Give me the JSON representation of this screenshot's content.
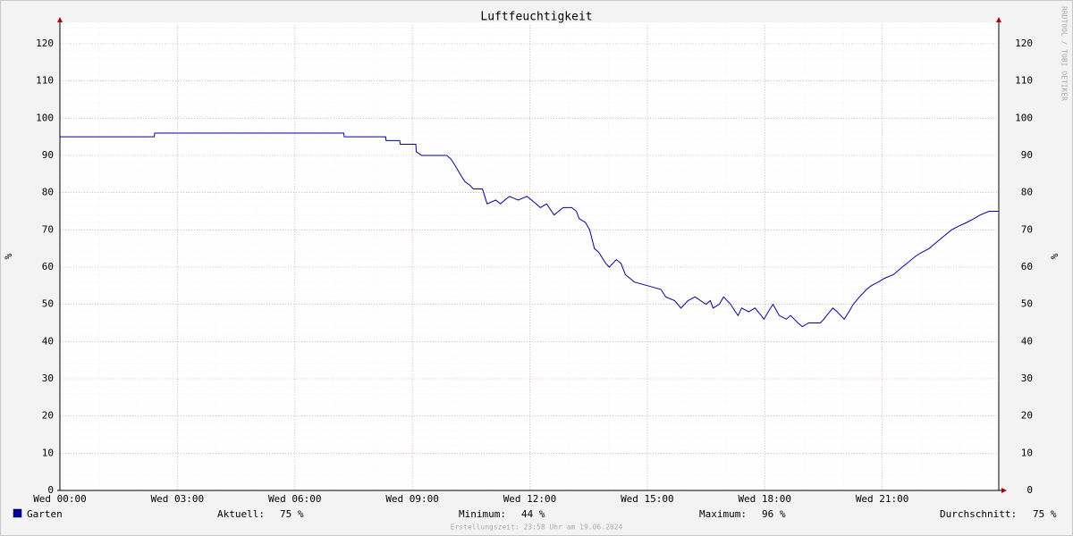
{
  "chart_data": {
    "type": "line",
    "title": "Luftfeuchtigkeit",
    "y_label": "%",
    "y2_label": "%",
    "watermark": "RRDTOOL / TOBI OETIKER",
    "xlim": [
      0,
      24
    ],
    "xticks": [
      {
        "value": 0,
        "label": "Wed 00:00"
      },
      {
        "value": 3,
        "label": "Wed 03:00"
      },
      {
        "value": 6,
        "label": "Wed 06:00"
      },
      {
        "value": 9,
        "label": "Wed 09:00"
      },
      {
        "value": 12,
        "label": "Wed 12:00"
      },
      {
        "value": 15,
        "label": "Wed 15:00"
      },
      {
        "value": 18,
        "label": "Wed 18:00"
      },
      {
        "value": 21,
        "label": "Wed 21:00"
      }
    ],
    "ylim": [
      0,
      125
    ],
    "yticks": [
      0,
      10,
      20,
      30,
      40,
      50,
      60,
      70,
      80,
      90,
      100,
      110,
      120
    ],
    "grid": true,
    "x": [
      0,
      2.41,
      2.42,
      7.25,
      7.26,
      8.32,
      8.33,
      8.68,
      8.69,
      9.09,
      9.1,
      9.24,
      9.88,
      9.99,
      10.11,
      10.22,
      10.34,
      10.47,
      10.56,
      10.79,
      10.91,
      11.13,
      11.25,
      11.36,
      11.48,
      11.7,
      11.93,
      12.16,
      12.27,
      12.43,
      12.62,
      12.85,
      13.07,
      13.19,
      13.26,
      13.42,
      13.53,
      13.65,
      13.76,
      13.94,
      14.03,
      14.21,
      14.33,
      14.44,
      14.67,
      15.01,
      15.35,
      15.47,
      15.7,
      15.86,
      16.04,
      16.22,
      16.5,
      16.61,
      16.68,
      16.84,
      16.95,
      17.13,
      17.25,
      17.32,
      17.41,
      17.59,
      17.75,
      17.91,
      17.98,
      18.09,
      18.21,
      18.37,
      18.55,
      18.66,
      18.85,
      18.96,
      19.12,
      19.42,
      19.51,
      19.58,
      19.74,
      19.85,
      20.03,
      20.15,
      20.26,
      20.42,
      20.6,
      20.72,
      20.9,
      21.06,
      21.29,
      21.51,
      21.63,
      21.86,
      22.02,
      22.2,
      22.31,
      22.54,
      22.77,
      22.95,
      23.16,
      23.34,
      23.5,
      23.73,
      23.96
    ],
    "series": [
      {
        "name": "Garten",
        "color": "#00009c",
        "values": [
          95,
          95,
          96,
          96,
          95,
          95,
          94,
          94,
          93,
          93,
          91,
          90,
          90,
          89,
          87,
          85,
          83,
          82,
          81,
          81,
          77,
          78,
          77,
          78,
          79,
          78,
          79,
          77,
          76,
          77,
          74,
          76,
          76,
          75,
          73,
          72,
          70,
          65,
          64,
          61,
          60,
          62,
          61,
          58,
          56,
          55,
          54,
          52,
          51,
          49,
          51,
          52,
          50,
          51,
          49,
          50,
          52,
          50,
          48,
          47,
          49,
          48,
          49,
          47,
          46,
          48,
          50,
          47,
          46,
          47,
          45,
          44,
          45,
          45,
          46,
          47,
          49,
          48,
          46,
          48,
          50,
          52,
          54,
          55,
          56,
          57,
          58,
          60,
          61,
          63,
          64,
          65,
          66,
          68,
          70,
          71,
          72,
          73,
          74,
          75,
          75
        ]
      }
    ],
    "stats": [
      {
        "label": "Aktuell:",
        "value": "75 %"
      },
      {
        "label": "Minimum:",
        "value": "44 %"
      },
      {
        "label": "Maximum:",
        "value": "96 %"
      },
      {
        "label": "Durchschnitt:",
        "value": "75 %"
      }
    ],
    "footer": "Erstellungszeit: 23:58 Uhr am 19.06.2024"
  }
}
